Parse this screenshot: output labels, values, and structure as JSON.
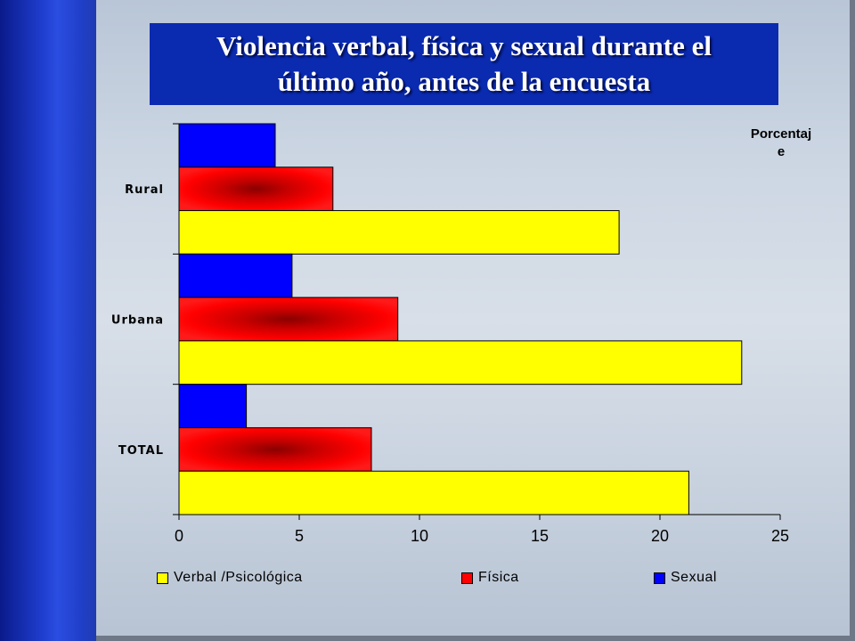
{
  "title": "Violencia verbal, física y sexual durante el\núltimo año, antes de la encuesta",
  "unit_label": "Porcentaj\ne",
  "colors": {
    "verbal": "#ffff00",
    "fisica": "#ff0000",
    "sexual": "#0000ff"
  },
  "chart_data": {
    "type": "bar",
    "orientation": "horizontal",
    "title": "Violencia verbal, física y sexual durante el último año, antes de la encuesta",
    "xlabel": "Porcentaje",
    "ylabel": "",
    "categories": [
      "Rural",
      "Urbana",
      "TOTAL"
    ],
    "series": [
      {
        "name": "Sexual",
        "color": "#0000ff",
        "values": [
          4.0,
          4.7,
          2.8
        ]
      },
      {
        "name": "Física",
        "color": "#ff0000",
        "values": [
          6.4,
          9.1,
          8.0
        ]
      },
      {
        "name": "Verbal /Psicológica",
        "color": "#ffff00",
        "values": [
          18.3,
          23.4,
          21.2
        ]
      }
    ],
    "xlim": [
      0,
      25
    ],
    "xticks": [
      0,
      5,
      10,
      15,
      20,
      25
    ],
    "grid": false,
    "legend_position": "bottom"
  },
  "legend": [
    {
      "label": "Verbal /Psicológica",
      "color": "#ffff00"
    },
    {
      "label": "Física",
      "color": "#ff0000"
    },
    {
      "label": "Sexual",
      "color": "#0000ff"
    }
  ]
}
